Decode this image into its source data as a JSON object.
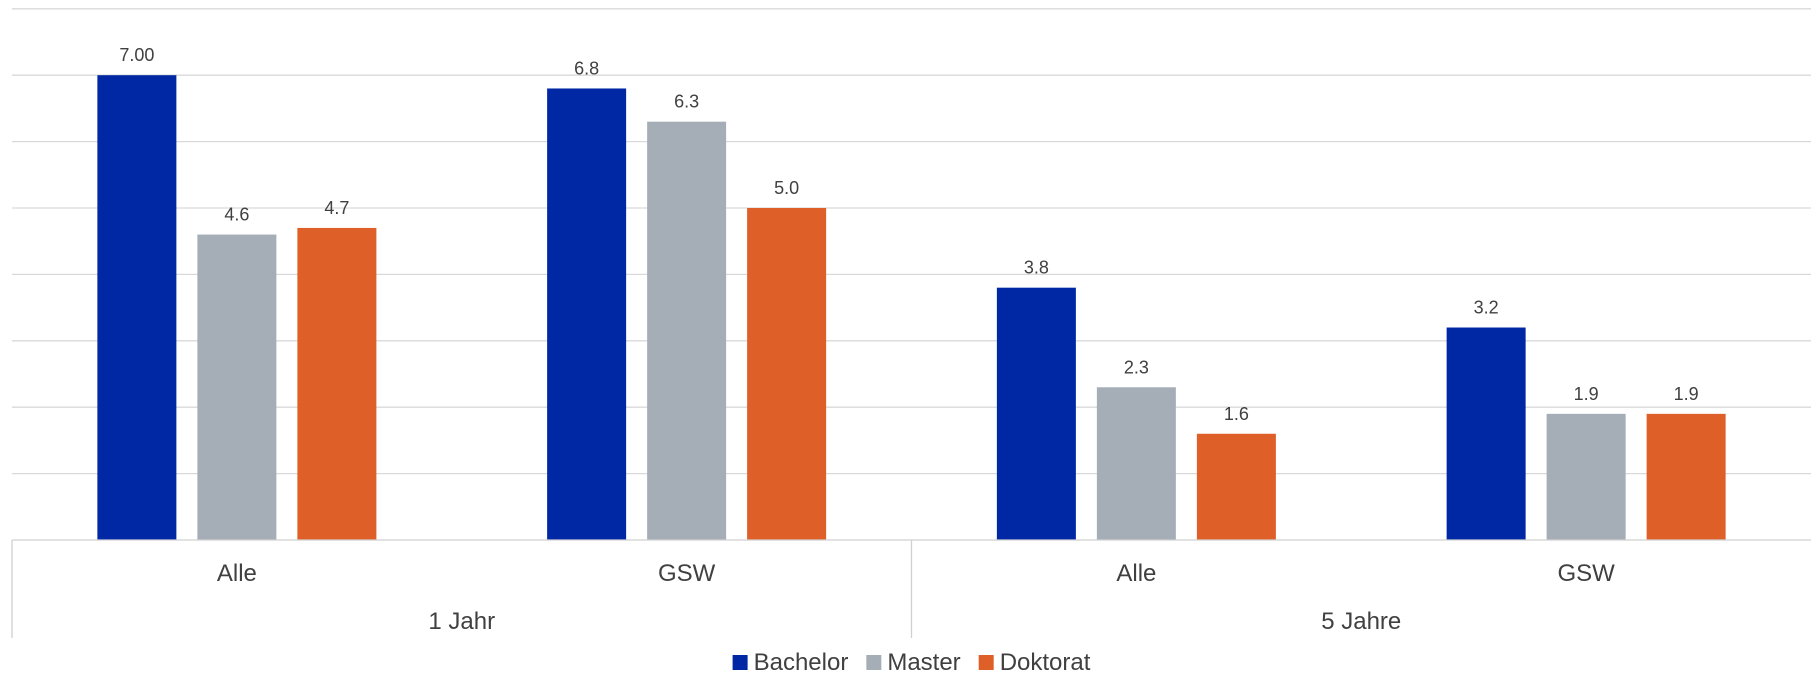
{
  "chart_data": {
    "type": "bar",
    "ylim": [
      0,
      8
    ],
    "grid": true,
    "legend_position": "bottom",
    "groups": [
      {
        "label": "1 Jahr",
        "categories": [
          "Alle",
          "GSW"
        ]
      },
      {
        "label": "5 Jahre",
        "categories": [
          "Alle",
          "GSW"
        ]
      }
    ],
    "categories": [
      "Alle",
      "GSW",
      "Alle",
      "GSW"
    ],
    "series": [
      {
        "name": "Bachelor",
        "color": "#0028a5",
        "values": [
          7.0,
          6.8,
          3.8,
          3.2
        ],
        "labels": [
          "7.00",
          "6.8",
          "3.8",
          "3.2"
        ]
      },
      {
        "name": "Master",
        "color": "#a5aeb7",
        "values": [
          4.6,
          6.3,
          2.3,
          1.9
        ],
        "labels": [
          "4.6",
          "6.3",
          "2.3",
          "1.9"
        ]
      },
      {
        "name": "Doktorat",
        "color": "#df5f28",
        "values": [
          4.7,
          5.0,
          1.6,
          1.9
        ],
        "labels": [
          "4.7",
          "5.0",
          "1.6",
          "1.9"
        ]
      }
    ]
  }
}
